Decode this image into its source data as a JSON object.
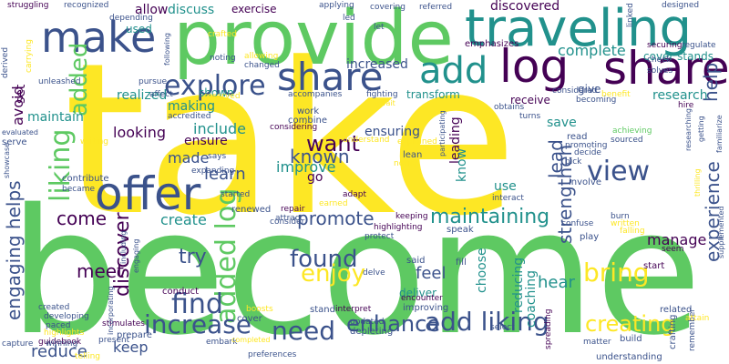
{
  "words": [
    "take",
    "become",
    "provide",
    "traveling",
    "make",
    "log",
    "share",
    "offer",
    "share",
    "add",
    "liking",
    "added",
    "added log",
    "engaging helps",
    "explore",
    "view",
    "discover",
    "found",
    "enjoy",
    "find",
    "increase",
    "need",
    "enhance",
    "add liking",
    "creating",
    "bring",
    "want",
    "known",
    "promote",
    "maintaining",
    "experience",
    "help",
    "lead",
    "strengthen",
    "choose",
    "feel",
    "meet",
    "try",
    "reduce",
    "keep",
    "come",
    "create",
    "manage",
    "hear",
    "reducing",
    "coaching",
    "improve",
    "learn",
    "go",
    "made",
    "ensure",
    "include",
    "making",
    "looking",
    "maintain",
    "realized",
    "shown",
    "avoid",
    "set",
    "complete",
    "research",
    "increased",
    "ensuring",
    "allow",
    "discuss",
    "exercise",
    "discovered",
    "used",
    "leading",
    "know",
    "use",
    "save",
    "give",
    "cover stands",
    "emphasizes",
    "transform",
    "receive",
    "lean",
    "explained",
    "adapt",
    "attract",
    "highlighting",
    "speak",
    "deliver",
    "said",
    "fill",
    "play",
    "start",
    "seem",
    "related",
    "remember",
    "crafting",
    "understanding",
    "build",
    "matter",
    "select",
    "spreading",
    "improving",
    "encounter",
    "depleting",
    "updated",
    "interpret",
    "stand",
    "conduct",
    "developing",
    "created",
    "paced",
    "highlights",
    "guidebook",
    "winning",
    "stimulates",
    "prepare",
    "embark",
    "capture",
    "present",
    "telling",
    "preferences",
    "completed",
    "cover",
    "boosts",
    "work",
    "combine",
    "considering",
    "accompanies",
    "fighting",
    "obtains",
    "turns",
    "considered",
    "benefit",
    "hire",
    "achieving",
    "promoting",
    "sourced",
    "decide",
    "pick",
    "involve",
    "interact",
    "burn",
    "confuse",
    "falling",
    "written",
    "keeping",
    "protect",
    "consider",
    "renewed",
    "repair",
    "started",
    "contribute",
    "became",
    "serve",
    "evaluated",
    "writing",
    "pursue",
    "affect",
    "accredited",
    "reserved",
    "changed",
    "allowing",
    "noting",
    "crafted",
    "struggling",
    "recognized",
    "depending",
    "following",
    "applying",
    "covering",
    "referred",
    "led",
    "let",
    "linked",
    "designed",
    "check",
    "securing",
    "regulate",
    "solves",
    "derived",
    "carrying",
    "unleashed",
    "expanding",
    "says",
    "earned",
    "notify",
    "understand",
    "participating",
    "becoming",
    "researching",
    "getting",
    "familiarize",
    "thrilling",
    "supplemented",
    "attain",
    "await",
    "showcase",
    "incorporating",
    "including",
    "engaging",
    "delve",
    "read"
  ],
  "palette": [
    "#440154",
    "#3b528b",
    "#21918c",
    "#5ec962",
    "#fde725"
  ]
}
